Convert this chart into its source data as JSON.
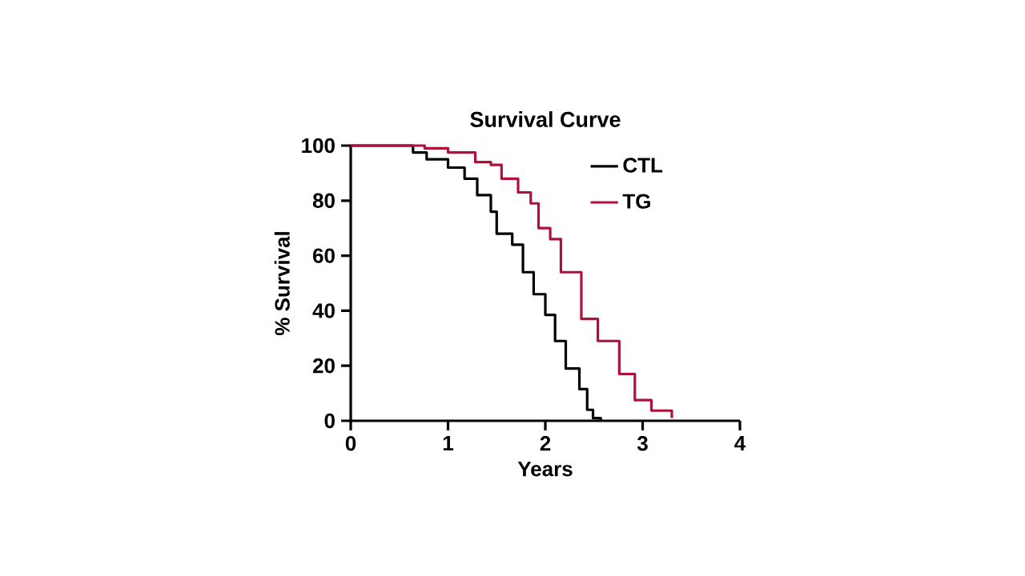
{
  "chart_data": {
    "type": "step",
    "title": "Survival Curve",
    "xlabel": "Years",
    "ylabel": "% Survival",
    "xlim": [
      0,
      4
    ],
    "ylim": [
      0,
      100
    ],
    "xticks": [
      0,
      1,
      2,
      3,
      4
    ],
    "yticks": [
      0,
      20,
      40,
      60,
      80,
      100
    ],
    "legend": "top right",
    "grid": false,
    "series": [
      {
        "name": "CTL",
        "color": "#000000",
        "x": [
          0,
          0.64,
          0.78,
          1.0,
          1.17,
          1.3,
          1.44,
          1.5,
          1.66,
          1.77,
          1.88,
          2.0,
          2.1,
          2.21,
          2.35,
          2.43,
          2.49,
          2.57
        ],
        "values": [
          100,
          97.5,
          95,
          92,
          88,
          82,
          76,
          68,
          64,
          54,
          46,
          38.5,
          29,
          19,
          11.5,
          4,
          1,
          0
        ]
      },
      {
        "name": "TG",
        "color": "#b0103a",
        "x": [
          0,
          0.76,
          1.0,
          1.28,
          1.44,
          1.55,
          1.72,
          1.85,
          1.93,
          2.05,
          2.16,
          2.37,
          2.54,
          2.76,
          2.92,
          3.09,
          3.3
        ],
        "values": [
          100,
          99,
          97.5,
          94,
          93,
          88,
          83,
          79,
          70,
          66,
          54,
          37,
          29,
          17,
          7.5,
          3.7,
          1
        ]
      }
    ]
  }
}
